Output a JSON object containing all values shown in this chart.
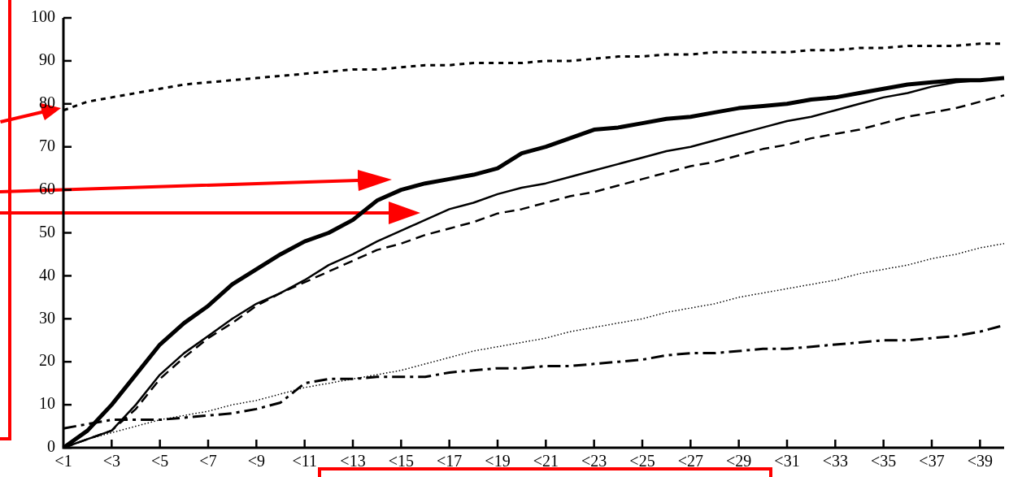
{
  "chart_data": {
    "type": "line",
    "categories": [
      "<1",
      null,
      "<3",
      null,
      "<5",
      null,
      "<7",
      null,
      "<9",
      null,
      "<11",
      null,
      "<13",
      null,
      "<15",
      null,
      "<17",
      null,
      "<19",
      null,
      "<21",
      null,
      "<23",
      null,
      "<25",
      null,
      "<27",
      null,
      "<29",
      null,
      "<31",
      null,
      "<33",
      null,
      "<35",
      null,
      "<37",
      null,
      "<39",
      null
    ],
    "ylim": [
      0,
      100
    ],
    "yticks": [
      0,
      10,
      20,
      30,
      40,
      50,
      60,
      70,
      80,
      90,
      100
    ],
    "grid": false,
    "legend": false,
    "marker": "none",
    "series": [
      {
        "color": "#000000",
        "line_style": "solid",
        "values": [
          0,
          4,
          10,
          17,
          24,
          29,
          33,
          38,
          41.5,
          45,
          48,
          50,
          53,
          57.5,
          60,
          61.5,
          62.5,
          63.5,
          65,
          68.5,
          70,
          72,
          74,
          74.5,
          75.5,
          76.5,
          77,
          78,
          79,
          79.5,
          80,
          81,
          81.5,
          82.5,
          83.5,
          84.5,
          85,
          85.5,
          85.5,
          86
        ]
      },
      {
        "color": "#000000",
        "line_style": "solid",
        "values": [
          0,
          2,
          4,
          10,
          17,
          22,
          26,
          30,
          33.5,
          36,
          39,
          42.5,
          45,
          48,
          50.5,
          53,
          55.5,
          57,
          59,
          60.5,
          61.5,
          63,
          64.5,
          66,
          67.5,
          69,
          70,
          71.5,
          73,
          74.5,
          76,
          77,
          78.5,
          80,
          81.5,
          82.5,
          84,
          85,
          85.5,
          86
        ]
      },
      {
        "color": "#000000",
        "line_style": "dashed",
        "values": [
          0,
          2,
          4,
          9,
          16,
          21,
          25.5,
          29,
          33,
          36,
          38.5,
          41,
          43.5,
          46,
          47.5,
          49.5,
          51,
          52.5,
          54.5,
          55.5,
          57,
          58.5,
          59.5,
          61,
          62.5,
          64,
          65.5,
          66.5,
          68,
          69.5,
          70.5,
          72,
          73,
          74,
          75.5,
          77,
          78,
          79,
          80.5,
          82
        ]
      },
      {
        "color": "#000000",
        "line_style": "dashed",
        "values": [
          78.5,
          80.5,
          81.5,
          82.5,
          83.5,
          84.5,
          85,
          85.5,
          86,
          86.5,
          87,
          87.5,
          88,
          88,
          88.5,
          89,
          89,
          89.5,
          89.5,
          89.5,
          90,
          90,
          90.5,
          91,
          91,
          91.5,
          91.5,
          92,
          92,
          92,
          92,
          92.5,
          92.5,
          93,
          93,
          93.5,
          93.5,
          93.5,
          94,
          94
        ]
      },
      {
        "color": "#000000",
        "line_style": "dotted",
        "values": [
          0,
          2,
          3.5,
          5,
          6.5,
          7.5,
          8.5,
          10,
          11,
          12.5,
          14,
          15,
          16,
          17,
          18,
          19.5,
          21,
          22.5,
          23.5,
          24.5,
          25.5,
          27,
          28,
          29,
          30,
          31.5,
          32.5,
          33.5,
          35,
          36,
          37,
          38,
          39,
          40.5,
          41.5,
          42.5,
          44,
          45,
          46.5,
          47.5
        ]
      },
      {
        "color": "#000000",
        "line_style": "dashdot",
        "values": [
          4.5,
          5.5,
          6.5,
          6.5,
          6.5,
          7,
          7.5,
          8,
          9,
          10.5,
          15,
          16,
          16,
          16.5,
          16.5,
          16.5,
          17.5,
          18,
          18.5,
          18.5,
          19,
          19,
          19.5,
          20,
          20.5,
          21.5,
          22,
          22,
          22.5,
          23,
          23,
          23.5,
          24,
          24.5,
          25,
          25,
          25.5,
          26,
          27,
          28.5
        ]
      }
    ]
  }
}
